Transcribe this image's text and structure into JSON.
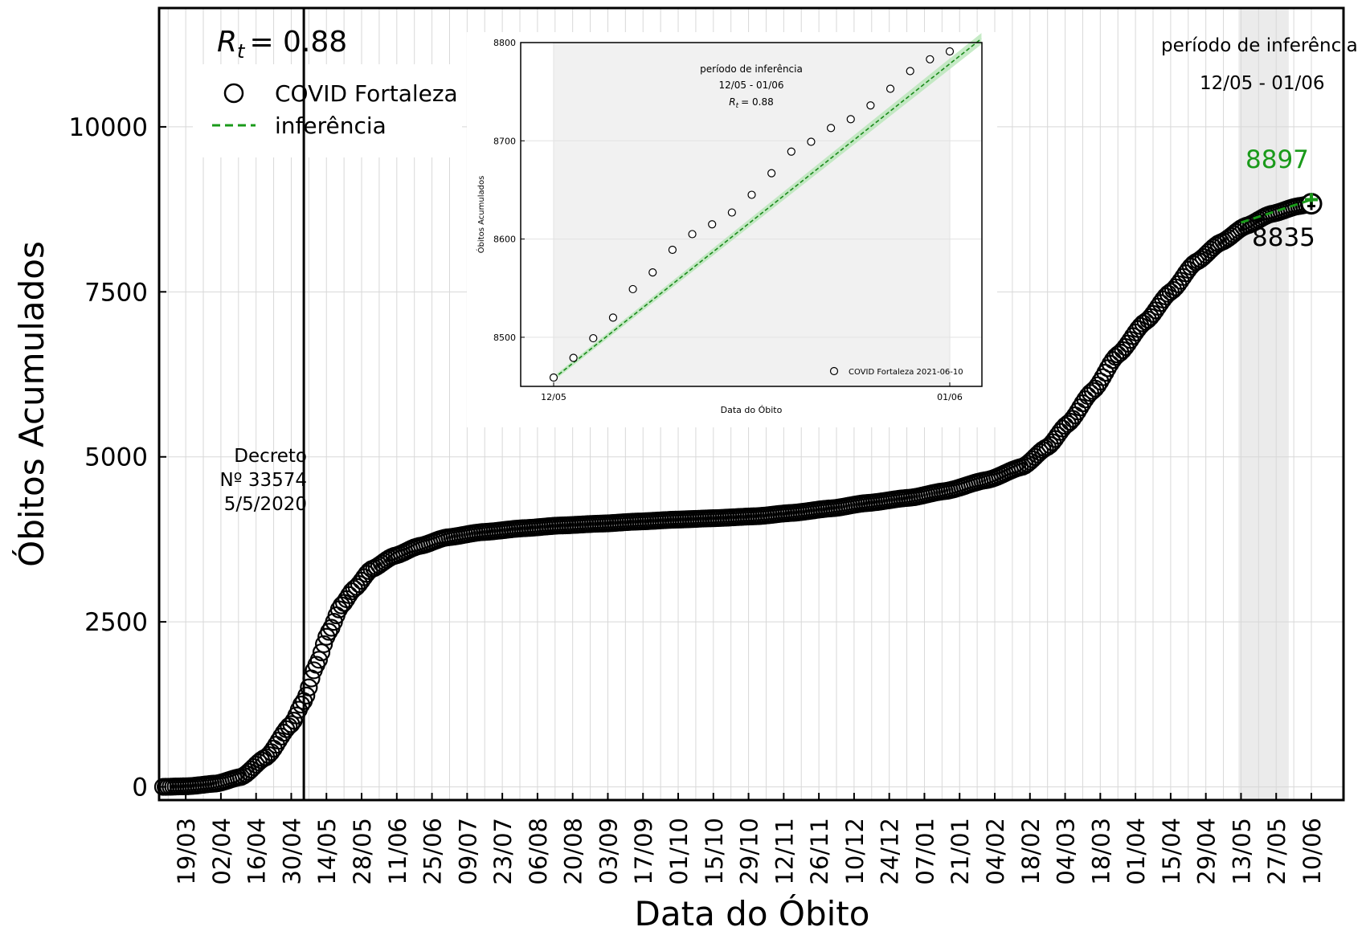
{
  "chart_data": [
    {
      "type": "scatter",
      "title": "",
      "xlabel": "Data do Óbito",
      "ylabel": "Óbitos Acumulados",
      "x_tick_labels": [
        "19/03",
        "02/04",
        "16/04",
        "30/04",
        "14/05",
        "28/05",
        "11/06",
        "25/06",
        "09/07",
        "23/07",
        "06/08",
        "20/08",
        "03/09",
        "17/09",
        "01/10",
        "15/10",
        "29/10",
        "12/11",
        "26/11",
        "10/12",
        "24/12",
        "07/01",
        "21/01",
        "04/02",
        "18/02",
        "04/03",
        "18/03",
        "01/04",
        "15/04",
        "29/04",
        "13/05",
        "27/05",
        "10/06"
      ],
      "y_ticks": [
        0,
        2500,
        5000,
        7500,
        10000
      ],
      "y_tick_labels": [
        "0",
        "2500",
        "5000",
        "7500",
        "10000"
      ],
      "ylim": [
        -200,
        11800
      ],
      "x_start_date": "2020-03-10",
      "x_end_date": "2021-06-10",
      "grid": true,
      "legend_position": "top-left",
      "rt_label": "R_t = 0.88",
      "rt_symbol": "R",
      "rt_subscript": "t",
      "rt_value": "= 0.88",
      "legend": [
        {
          "name": "COVID Fortaleza",
          "marker": "circle-open",
          "color": "#000000"
        },
        {
          "name": "inferência",
          "marker": "dashed-line",
          "color": "#1a9a1a"
        }
      ],
      "series": [
        {
          "name": "COVID Fortaleza",
          "x": [
            "2020-03-10",
            "2020-03-20",
            "2020-03-31",
            "2020-04-10",
            "2020-04-20",
            "2020-04-30",
            "2020-05-05",
            "2020-05-10",
            "2020-05-15",
            "2020-05-20",
            "2020-05-25",
            "2020-06-01",
            "2020-06-10",
            "2020-06-20",
            "2020-07-01",
            "2020-07-15",
            "2020-08-01",
            "2020-08-15",
            "2020-09-01",
            "2020-09-15",
            "2020-10-01",
            "2020-10-15",
            "2020-11-01",
            "2020-11-15",
            "2020-12-01",
            "2020-12-15",
            "2021-01-01",
            "2021-01-15",
            "2021-02-01",
            "2021-02-15",
            "2021-02-25",
            "2021-03-05",
            "2021-03-15",
            "2021-03-25",
            "2021-04-05",
            "2021-04-15",
            "2021-04-25",
            "2021-05-05",
            "2021-05-15",
            "2021-05-25",
            "2021-06-05",
            "2021-06-10"
          ],
          "values": [
            0,
            10,
            50,
            150,
            450,
            950,
            1300,
            1850,
            2350,
            2750,
            3000,
            3300,
            3500,
            3650,
            3780,
            3860,
            3920,
            3960,
            3990,
            4020,
            4050,
            4070,
            4100,
            4150,
            4220,
            4300,
            4380,
            4480,
            4650,
            4850,
            5150,
            5500,
            6000,
            6550,
            7050,
            7500,
            7950,
            8250,
            8500,
            8680,
            8800,
            8835
          ]
        },
        {
          "name": "inferência",
          "x": [
            "2021-05-13",
            "2021-06-10"
          ],
          "values": [
            8550,
            8897
          ]
        }
      ],
      "annotations": {
        "decree_date": "2020-05-05",
        "decree_lines": [
          "Decreto",
          "Nº 33574",
          "5/5/2020"
        ],
        "inference_period_start": "2021-05-12",
        "inference_period_end": "2021-06-01",
        "inference_title": "período de inferência",
        "inference_range": "12/05 - 01/06",
        "projected_value": "8897",
        "last_value": "8835",
        "projected_color": "#1a9a1a"
      }
    },
    {
      "type": "scatter",
      "title": "período de inferência",
      "subtitle": "12/05 - 01/06",
      "rt_label": "R_t = 0.88",
      "rt_symbol": "R",
      "rt_subscript": "t",
      "rt_value": "= 0.88",
      "xlabel": "Data do Óbito",
      "ylabel": "Óbitos Acumulados",
      "x_tick_labels": [
        "12/05",
        "01/06"
      ],
      "y_ticks": [
        8500,
        8600,
        8700,
        8800
      ],
      "y_tick_labels": [
        "8500",
        "8600",
        "8700",
        "8800"
      ],
      "ylim": [
        8450,
        8800
      ],
      "xlim": [
        0,
        21.6
      ],
      "legend": [
        {
          "name": "COVID Fortaleza 2021-06-10",
          "marker": "circle-open"
        }
      ],
      "legend_position": "bottom-right",
      "series": [
        {
          "name": "COVID Fortaleza 2021-06-10",
          "x": [
            0,
            1,
            2,
            3,
            4,
            5,
            6,
            7,
            8,
            9,
            10,
            11,
            12,
            13,
            14,
            15,
            16,
            17,
            18,
            19,
            20
          ],
          "values": [
            8459,
            8479,
            8499,
            8520,
            8549,
            8566,
            8589,
            8605,
            8615,
            8627,
            8645,
            8667,
            8689,
            8699,
            8713,
            8722,
            8736,
            8753,
            8771,
            8783,
            8791
          ]
        },
        {
          "name": "inferência",
          "x": [
            0,
            21.6
          ],
          "values": [
            8458,
            8804
          ]
        }
      ]
    }
  ]
}
